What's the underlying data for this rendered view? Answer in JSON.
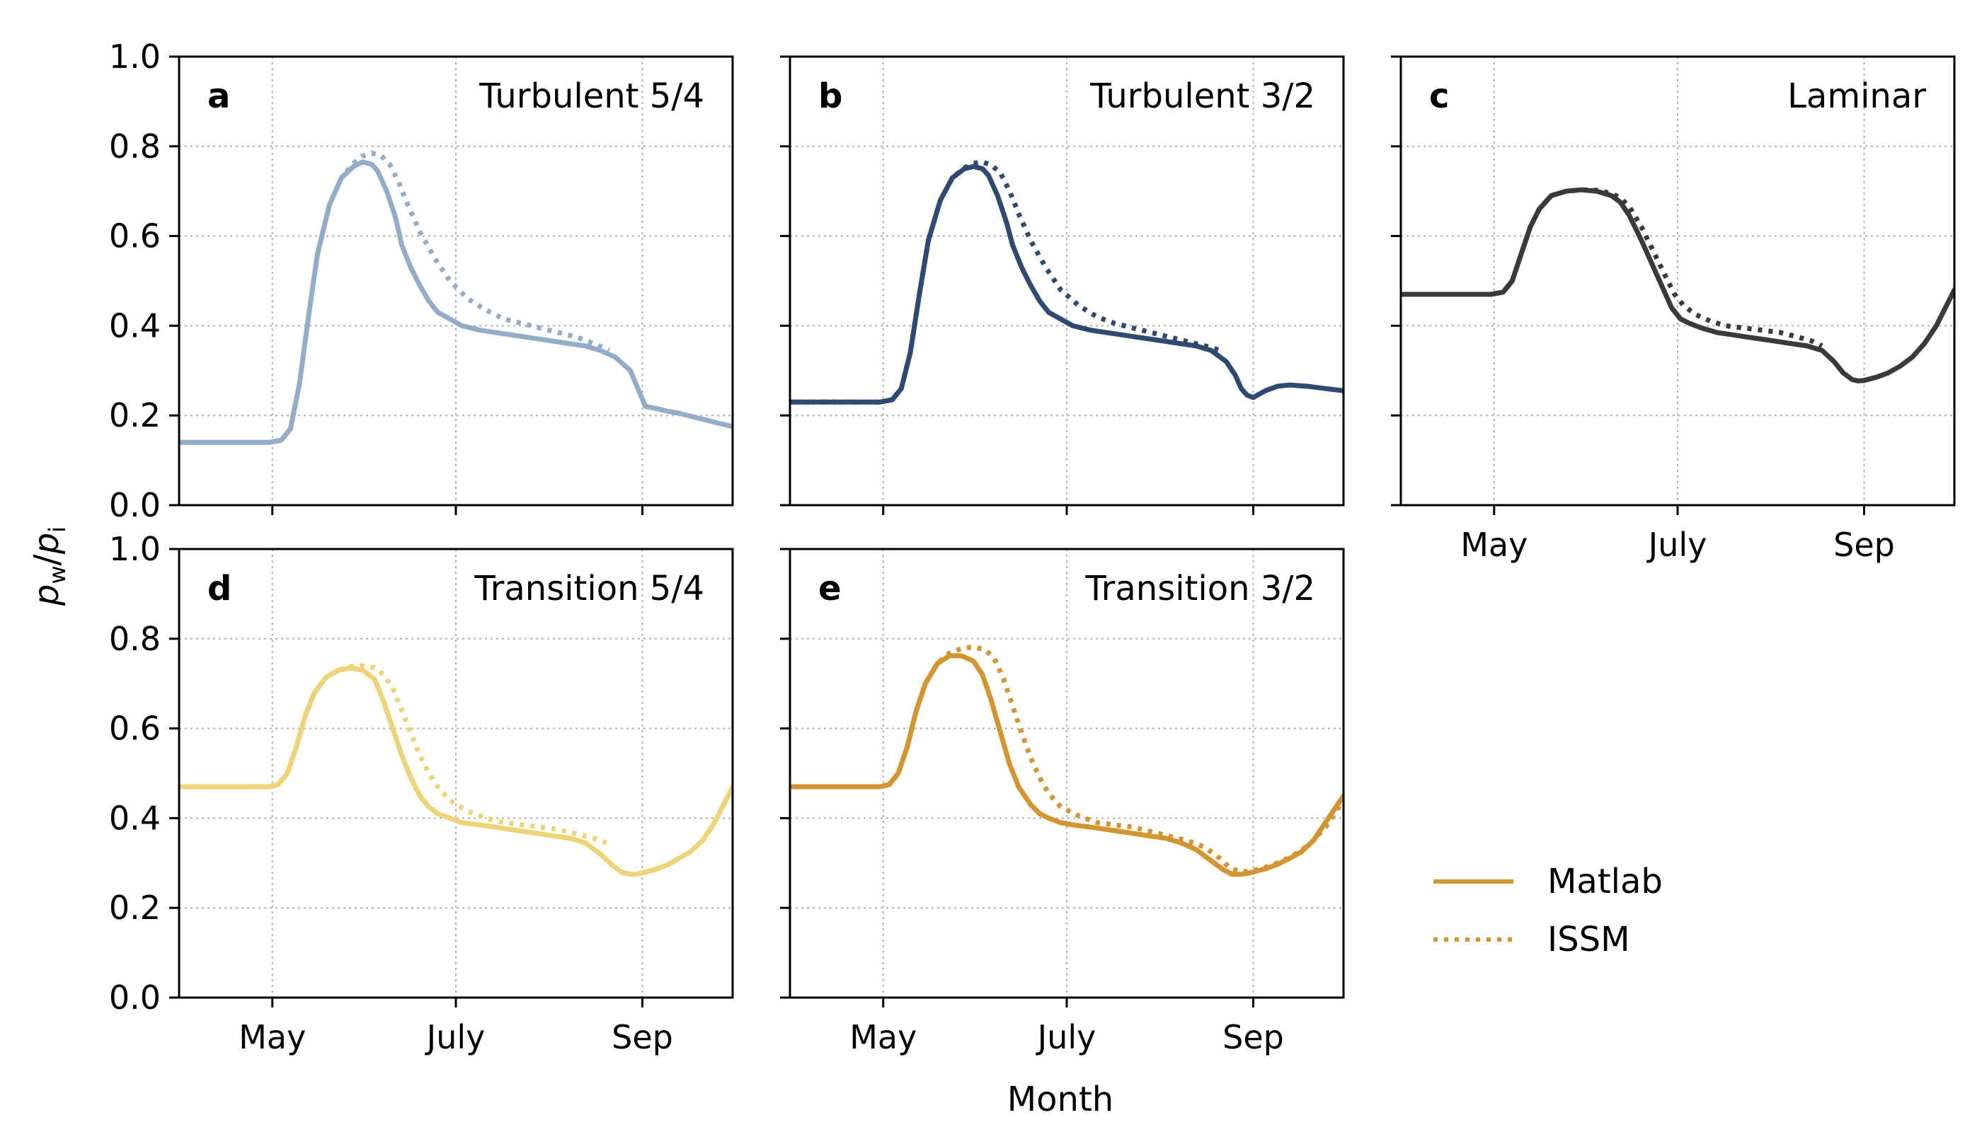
{
  "chart_data": {
    "type": "line",
    "ylabel": "p_w/p_i",
    "ylabel_main": "p",
    "ylabel_sub_num": "w",
    "ylabel_slash": "/",
    "ylabel_den": "p",
    "ylabel_sub_den": "i",
    "xlabel": "Month",
    "ylim": [
      0,
      1
    ],
    "yticks": [
      "0.0",
      "0.2",
      "0.4",
      "0.6",
      "0.8",
      "1.0"
    ],
    "xticks": [
      "May",
      "July",
      "Sep"
    ],
    "xtick_days": [
      121,
      182,
      244
    ],
    "xlim_days": [
      90,
      274
    ],
    "grid": true,
    "legend": {
      "placement": "lower-right",
      "entries": [
        {
          "name": "Matlab",
          "style": "solid"
        },
        {
          "name": "ISSM",
          "style": "dotted"
        }
      ],
      "color": "#D4952F"
    },
    "panels": [
      {
        "letter": "a",
        "title": "Turbulent 5/4",
        "color": "#93ACC8",
        "series": [
          {
            "name": "Matlab",
            "x": [
              90,
              115,
              120,
              124,
              127,
              130,
              133,
              136,
              140,
              144,
              148,
              151,
              154,
              156,
              159,
              162,
              164,
              167,
              170,
              173,
              176,
              180,
              184,
              190,
              195,
              200,
              205,
              210,
              215,
              220,
              225,
              230,
              235,
              240,
              245,
              249,
              252,
              256,
              262,
              268,
              274
            ],
            "y": [
              0.14,
              0.14,
              0.14,
              0.145,
              0.17,
              0.27,
              0.42,
              0.56,
              0.67,
              0.73,
              0.755,
              0.765,
              0.76,
              0.745,
              0.7,
              0.64,
              0.58,
              0.53,
              0.49,
              0.455,
              0.43,
              0.415,
              0.4,
              0.39,
              0.385,
              0.38,
              0.375,
              0.37,
              0.365,
              0.36,
              0.355,
              0.345,
              0.33,
              0.3,
              0.22,
              0.215,
              0.21,
              0.205,
              0.195,
              0.185,
              0.175
            ]
          },
          {
            "name": "ISSM",
            "x": [
              90,
              115,
              120,
              124,
              127,
              130,
              133,
              136,
              140,
              144,
              148,
              151,
              154,
              157,
              160,
              163,
              166,
              170,
              175,
              180,
              186,
              192,
              198,
              204,
              210,
              216,
              222,
              228,
              233
            ],
            "y": [
              0.14,
              0.14,
              0.14,
              0.145,
              0.17,
              0.27,
              0.42,
              0.56,
              0.67,
              0.73,
              0.762,
              0.778,
              0.785,
              0.78,
              0.76,
              0.72,
              0.67,
              0.61,
              0.55,
              0.5,
              0.46,
              0.435,
              0.415,
              0.405,
              0.395,
              0.385,
              0.375,
              0.36,
              0.345
            ]
          }
        ]
      },
      {
        "letter": "b",
        "title": "Turbulent 3/2",
        "color": "#2E4A72",
        "series": [
          {
            "name": "Matlab",
            "x": [
              90,
              115,
              120,
              124,
              127,
              130,
              133,
              136,
              140,
              144,
              148,
              151,
              154,
              156,
              159,
              162,
              164,
              167,
              170,
              173,
              176,
              180,
              184,
              190,
              195,
              200,
              205,
              210,
              215,
              220,
              225,
              230,
              235,
              238,
              240,
              242,
              244,
              248,
              252,
              256,
              262,
              268,
              274
            ],
            "y": [
              0.23,
              0.23,
              0.23,
              0.235,
              0.26,
              0.34,
              0.47,
              0.59,
              0.68,
              0.73,
              0.75,
              0.755,
              0.75,
              0.735,
              0.69,
              0.63,
              0.58,
              0.53,
              0.49,
              0.455,
              0.43,
              0.415,
              0.4,
              0.39,
              0.385,
              0.38,
              0.375,
              0.37,
              0.365,
              0.36,
              0.355,
              0.345,
              0.32,
              0.29,
              0.26,
              0.245,
              0.24,
              0.255,
              0.265,
              0.268,
              0.265,
              0.26,
              0.255
            ]
          },
          {
            "name": "ISSM",
            "x": [
              90,
              115,
              120,
              124,
              127,
              130,
              133,
              136,
              140,
              144,
              148,
              151,
              154,
              157,
              160,
              163,
              166,
              170,
              175,
              180,
              186,
              192,
              198,
              204,
              210,
              216,
              222,
              228,
              233
            ],
            "y": [
              0.23,
              0.23,
              0.23,
              0.235,
              0.26,
              0.34,
              0.47,
              0.59,
              0.68,
              0.73,
              0.752,
              0.762,
              0.765,
              0.758,
              0.74,
              0.7,
              0.65,
              0.59,
              0.53,
              0.48,
              0.445,
              0.42,
              0.405,
              0.395,
              0.385,
              0.375,
              0.365,
              0.355,
              0.345
            ]
          }
        ]
      },
      {
        "letter": "c",
        "title": "Laminar",
        "color": "#3A3A3A",
        "series": [
          {
            "name": "Matlab",
            "x": [
              90,
              115,
              120,
              124,
              127,
              130,
              133,
              136,
              140,
              145,
              150,
              155,
              160,
              163,
              166,
              170,
              174,
              178,
              180,
              183,
              186,
              190,
              195,
              200,
              205,
              210,
              215,
              220,
              225,
              230,
              234,
              237,
              240,
              242,
              244,
              248,
              252,
              256,
              260,
              264,
              268,
              271,
              274
            ],
            "y": [
              0.47,
              0.47,
              0.47,
              0.475,
              0.5,
              0.56,
              0.62,
              0.66,
              0.69,
              0.7,
              0.703,
              0.7,
              0.69,
              0.675,
              0.645,
              0.59,
              0.53,
              0.47,
              0.44,
              0.415,
              0.405,
              0.395,
              0.385,
              0.38,
              0.375,
              0.37,
              0.365,
              0.36,
              0.355,
              0.345,
              0.32,
              0.295,
              0.28,
              0.277,
              0.278,
              0.285,
              0.295,
              0.31,
              0.33,
              0.36,
              0.4,
              0.44,
              0.48
            ]
          },
          {
            "name": "ISSM",
            "x": [
              90,
              115,
              120,
              124,
              127,
              130,
              133,
              136,
              140,
              145,
              150,
              155,
              160,
              163,
              166,
              170,
              174,
              178,
              181,
              184,
              188,
              193,
              198,
              204,
              210,
              216,
              222,
              227,
              230
            ],
            "y": [
              0.47,
              0.47,
              0.47,
              0.475,
              0.5,
              0.56,
              0.62,
              0.66,
              0.69,
              0.7,
              0.703,
              0.702,
              0.695,
              0.685,
              0.665,
              0.62,
              0.565,
              0.51,
              0.47,
              0.445,
              0.425,
              0.41,
              0.4,
              0.395,
              0.39,
              0.385,
              0.375,
              0.365,
              0.355
            ]
          }
        ]
      },
      {
        "letter": "d",
        "title": "Transition 5/4",
        "color": "#EED474",
        "series": [
          {
            "name": "Matlab",
            "x": [
              90,
              115,
              120,
              123,
              126,
              129,
              132,
              135,
              139,
              143,
              147,
              151,
              155,
              158,
              161,
              164,
              167,
              170,
              173,
              176,
              180,
              184,
              190,
              195,
              200,
              205,
              210,
              215,
              220,
              225,
              230,
              234,
              237,
              240,
              242,
              244,
              248,
              252,
              256,
              260,
              264,
              268,
              271,
              274
            ],
            "y": [
              0.47,
              0.47,
              0.47,
              0.475,
              0.5,
              0.56,
              0.63,
              0.68,
              0.715,
              0.73,
              0.735,
              0.73,
              0.71,
              0.66,
              0.6,
              0.54,
              0.49,
              0.45,
              0.425,
              0.41,
              0.4,
              0.39,
              0.385,
              0.38,
              0.375,
              0.37,
              0.365,
              0.36,
              0.355,
              0.345,
              0.32,
              0.295,
              0.28,
              0.275,
              0.275,
              0.278,
              0.285,
              0.295,
              0.31,
              0.325,
              0.35,
              0.39,
              0.43,
              0.47
            ]
          },
          {
            "name": "ISSM",
            "x": [
              90,
              115,
              120,
              123,
              126,
              129,
              132,
              135,
              139,
              143,
              147,
              151,
              155,
              158,
              161,
              164,
              167,
              170,
              173,
              176,
              180,
              186,
              192,
              198,
              204,
              210,
              216,
              222,
              228,
              232
            ],
            "y": [
              0.47,
              0.47,
              0.47,
              0.475,
              0.5,
              0.56,
              0.63,
              0.68,
              0.715,
              0.73,
              0.738,
              0.74,
              0.735,
              0.72,
              0.69,
              0.64,
              0.59,
              0.54,
              0.5,
              0.47,
              0.44,
              0.415,
              0.4,
              0.39,
              0.385,
              0.38,
              0.375,
              0.365,
              0.355,
              0.345
            ]
          }
        ]
      },
      {
        "letter": "e",
        "title": "Transition 3/2",
        "color": "#D4952F",
        "series": [
          {
            "name": "Matlab",
            "x": [
              90,
              115,
              120,
              123,
              126,
              129,
              132,
              135,
              139,
              143,
              147,
              151,
              154,
              157,
              160,
              163,
              166,
              170,
              173,
              176,
              180,
              184,
              190,
              195,
              200,
              205,
              210,
              215,
              220,
              225,
              230,
              234,
              237,
              240,
              242,
              244,
              248,
              252,
              256,
              260,
              264,
              268,
              271,
              274
            ],
            "y": [
              0.47,
              0.47,
              0.47,
              0.475,
              0.5,
              0.56,
              0.64,
              0.7,
              0.745,
              0.762,
              0.762,
              0.75,
              0.72,
              0.66,
              0.59,
              0.52,
              0.47,
              0.43,
              0.41,
              0.4,
              0.39,
              0.385,
              0.38,
              0.375,
              0.37,
              0.365,
              0.36,
              0.355,
              0.345,
              0.33,
              0.305,
              0.285,
              0.275,
              0.275,
              0.277,
              0.28,
              0.287,
              0.297,
              0.31,
              0.325,
              0.35,
              0.39,
              0.42,
              0.45
            ]
          },
          {
            "name": "ISSM",
            "x": [
              90,
              115,
              120,
              123,
              126,
              129,
              132,
              135,
              139,
              143,
              147,
              151,
              155,
              158,
              161,
              164,
              167,
              170,
              173,
              176,
              180,
              186,
              192,
              198,
              204,
              210,
              216,
              222,
              228,
              233,
              236,
              240,
              244,
              248,
              252,
              256,
              260,
              264,
              268,
              271,
              274
            ],
            "y": [
              0.47,
              0.47,
              0.47,
              0.475,
              0.5,
              0.56,
              0.64,
              0.7,
              0.745,
              0.768,
              0.778,
              0.782,
              0.775,
              0.755,
              0.71,
              0.65,
              0.59,
              0.535,
              0.49,
              0.455,
              0.425,
              0.405,
              0.39,
              0.385,
              0.38,
              0.37,
              0.36,
              0.35,
              0.335,
              0.31,
              0.29,
              0.28,
              0.283,
              0.29,
              0.3,
              0.312,
              0.328,
              0.35,
              0.38,
              0.41,
              0.44
            ]
          }
        ]
      }
    ]
  }
}
